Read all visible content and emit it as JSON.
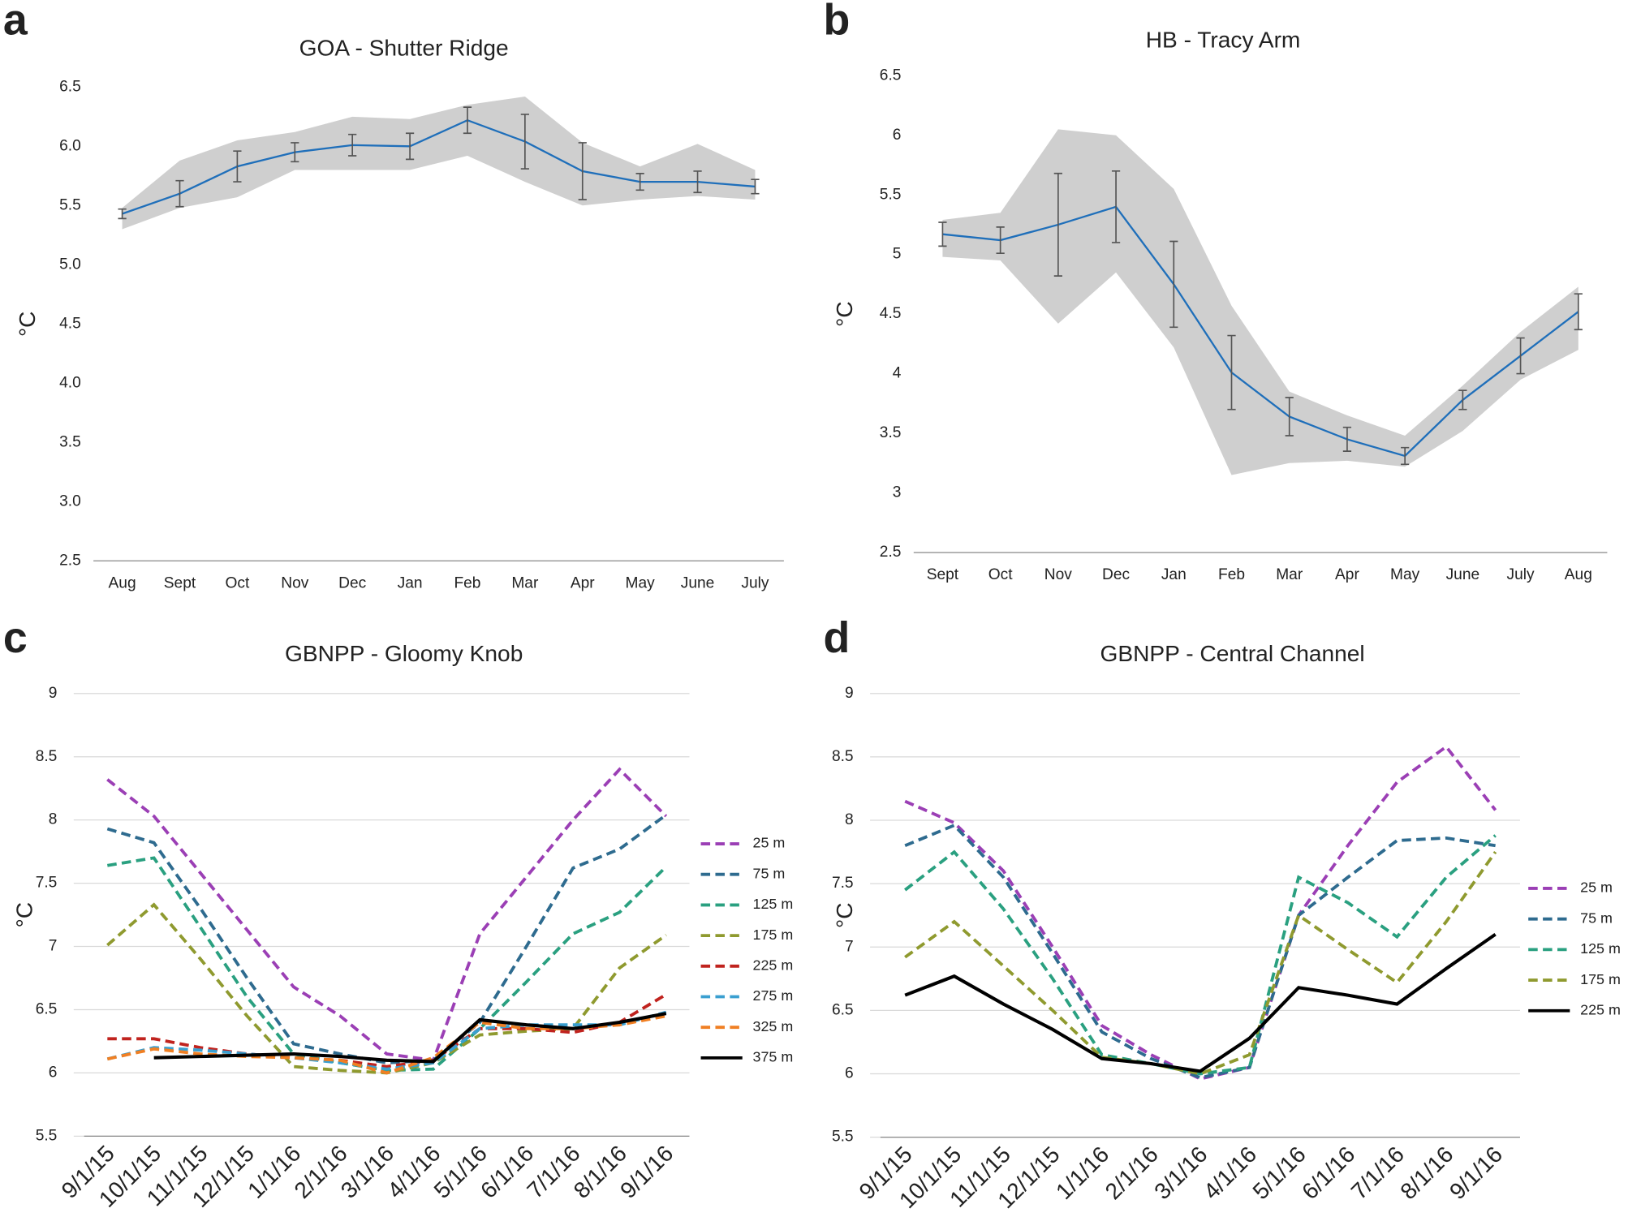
{
  "chart_data": [
    {
      "type": "line",
      "panel_label": "a",
      "title": "GOA - Shutter Ridge",
      "y_label": "°C",
      "categories": [
        "Aug",
        "Sept",
        "Oct",
        "Nov",
        "Dec",
        "Jan",
        "Feb",
        "Mar",
        "Apr",
        "May",
        "June",
        "July"
      ],
      "values": [
        5.43,
        5.6,
        5.83,
        5.95,
        6.01,
        6.0,
        6.22,
        6.04,
        5.79,
        5.7,
        5.7,
        5.66
      ],
      "errors": [
        0.04,
        0.11,
        0.13,
        0.08,
        0.09,
        0.11,
        0.11,
        0.23,
        0.24,
        0.07,
        0.09,
        0.06
      ],
      "band_upper": [
        5.48,
        5.88,
        6.05,
        6.12,
        6.25,
        6.23,
        6.35,
        6.42,
        6.03,
        5.83,
        6.02,
        5.8
      ],
      "band_lower": [
        5.3,
        5.48,
        5.57,
        5.8,
        5.8,
        5.8,
        5.92,
        5.7,
        5.5,
        5.55,
        5.58,
        5.55
      ],
      "color": "#1f6fba",
      "band_color": "#cfcfcf",
      "error_color": "#555555",
      "ylim": [
        2.5,
        6.5
      ],
      "yticks": [
        2.5,
        {
          "value": 3,
          "label": "3.0"
        },
        3.5,
        {
          "value": 4,
          "label": "4.0"
        },
        4.5,
        {
          "value": 5,
          "label": "5.0"
        },
        5.5,
        {
          "value": 6,
          "label": "6.0"
        },
        6.5
      ],
      "grid": false
    },
    {
      "type": "line",
      "panel_label": "b",
      "title": "HB - Tracy Arm",
      "y_label": "°C",
      "categories": [
        "Sept",
        "Oct",
        "Nov",
        "Dec",
        "Jan",
        "Feb",
        "Mar",
        "Apr",
        "May",
        "June",
        "July",
        "Aug"
      ],
      "values": [
        5.17,
        5.12,
        5.25,
        5.4,
        4.75,
        4.01,
        3.64,
        3.45,
        3.31,
        3.78,
        4.15,
        4.52
      ],
      "errors": [
        0.1,
        0.11,
        0.43,
        0.3,
        0.36,
        0.31,
        0.16,
        0.1,
        0.07,
        0.08,
        0.15,
        0.15
      ],
      "band_upper": [
        5.29,
        5.35,
        6.05,
        6.0,
        5.55,
        4.57,
        3.85,
        3.65,
        3.48,
        3.9,
        4.35,
        4.73
      ],
      "band_lower": [
        4.98,
        4.95,
        4.42,
        4.85,
        4.22,
        3.15,
        3.25,
        3.27,
        3.22,
        3.52,
        3.95,
        4.2
      ],
      "color": "#1f6fba",
      "band_color": "#cfcfcf",
      "error_color": "#555555",
      "ylim": [
        2.5,
        6.5
      ],
      "yticks": [
        2.5,
        3,
        3.5,
        4,
        4.5,
        5,
        5.5,
        6,
        6.5
      ],
      "grid": false
    },
    {
      "type": "line",
      "panel_label": "c",
      "title": "GBNPP - Gloomy Knob",
      "y_label": "°C",
      "categories": [
        "9/1/15",
        "10/1/15",
        "11/1/15",
        "12/1/15",
        "1/1/16",
        "2/1/16",
        "3/1/16",
        "4/1/16",
        "5/1/16",
        "6/1/16",
        "7/1/16",
        "8/1/16",
        "9/1/16"
      ],
      "series": [
        {
          "name": "25 m",
          "color": "#9b3fb5",
          "dash": true,
          "values": [
            8.32,
            8.03,
            7.58,
            7.13,
            6.68,
            6.45,
            6.15,
            6.1,
            7.1,
            7.55,
            8.0,
            8.4,
            8.03
          ]
        },
        {
          "name": "75 m",
          "color": "#2e6b8f",
          "dash": true,
          "values": [
            7.93,
            7.82,
            7.3,
            6.75,
            6.23,
            6.15,
            6.08,
            6.1,
            6.4,
            7.0,
            7.62,
            7.77,
            8.04
          ]
        },
        {
          "name": "125 m",
          "color": "#2aa080",
          "dash": true,
          "values": [
            7.64,
            7.7,
            7.15,
            6.6,
            6.15,
            6.08,
            6.02,
            6.03,
            6.35,
            6.72,
            7.1,
            7.27,
            7.63
          ]
        },
        {
          "name": "175 m",
          "color": "#8f9a2f",
          "dash": true,
          "values": [
            7.01,
            7.33,
            6.9,
            6.45,
            6.05,
            6.02,
            6.0,
            6.08,
            6.3,
            6.33,
            6.35,
            6.83,
            7.09
          ]
        },
        {
          "name": "225 m",
          "color": "#c0231e",
          "dash": true,
          "values": [
            6.27,
            6.27,
            6.2,
            6.15,
            6.12,
            6.1,
            6.05,
            6.1,
            6.35,
            6.35,
            6.32,
            6.4,
            6.62
          ]
        },
        {
          "name": "275 m",
          "color": "#3a9fd0",
          "dash": true,
          "values": [
            6.11,
            6.2,
            6.18,
            6.15,
            6.12,
            6.08,
            6.03,
            6.08,
            6.35,
            6.38,
            6.38,
            6.38,
            6.48
          ]
        },
        {
          "name": "325 m",
          "color": "#f07f23",
          "dash": true,
          "values": [
            6.11,
            6.19,
            6.15,
            6.13,
            6.12,
            6.1,
            6.0,
            6.12,
            6.4,
            6.35,
            6.35,
            6.38,
            6.45
          ]
        },
        {
          "name": "375 m",
          "color": "#000000",
          "dash": false,
          "values": [
            null,
            6.12,
            6.13,
            6.14,
            6.15,
            6.13,
            6.1,
            6.09,
            6.42,
            6.38,
            6.35,
            6.4,
            6.47
          ]
        }
      ],
      "ylim": [
        5.5,
        9
      ],
      "yticks": [
        5.5,
        6,
        6.5,
        7,
        7.5,
        8,
        8.5,
        9
      ],
      "grid": true,
      "legend": "right"
    },
    {
      "type": "line",
      "panel_label": "d",
      "title": "GBNPP - Central Channel",
      "y_label": "°C",
      "categories": [
        "9/1/15",
        "10/1/15",
        "11/1/15",
        "12/1/15",
        "1/1/16",
        "2/1/16",
        "3/1/16",
        "4/1/16",
        "5/1/16",
        "6/1/16",
        "7/1/16",
        "8/1/16",
        "9/1/16"
      ],
      "series": [
        {
          "name": "25 m",
          "color": "#9b3fb5",
          "dash": true,
          "values": [
            8.15,
            7.98,
            7.6,
            7.0,
            6.38,
            6.15,
            5.96,
            6.05,
            7.25,
            7.8,
            8.3,
            8.58,
            8.08
          ]
        },
        {
          "name": "75 m",
          "color": "#2e6b8f",
          "dash": true,
          "values": [
            7.8,
            7.96,
            7.55,
            6.95,
            6.33,
            6.12,
            5.97,
            6.05,
            7.25,
            7.55,
            7.84,
            7.86,
            7.8
          ]
        },
        {
          "name": "125 m",
          "color": "#2aa080",
          "dash": true,
          "values": [
            7.45,
            7.75,
            7.3,
            6.75,
            6.15,
            6.08,
            6.0,
            6.05,
            7.55,
            7.35,
            7.08,
            7.55,
            7.88
          ]
        },
        {
          "name": "175 m",
          "color": "#8f9a2f",
          "dash": true,
          "values": [
            6.92,
            7.2,
            6.85,
            6.5,
            6.13,
            6.08,
            6.0,
            6.15,
            7.25,
            6.98,
            6.72,
            7.2,
            7.75
          ]
        },
        {
          "name": "225 m",
          "color": "#000000",
          "dash": false,
          "values": [
            6.62,
            6.77,
            6.55,
            6.35,
            6.12,
            6.08,
            6.02,
            6.28,
            6.68,
            6.62,
            6.55,
            6.83,
            7.1
          ]
        }
      ],
      "ylim": [
        5.5,
        9
      ],
      "yticks": [
        5.5,
        6,
        6.5,
        7,
        7.5,
        8,
        8.5,
        9
      ],
      "grid": true,
      "legend": "right"
    }
  ]
}
